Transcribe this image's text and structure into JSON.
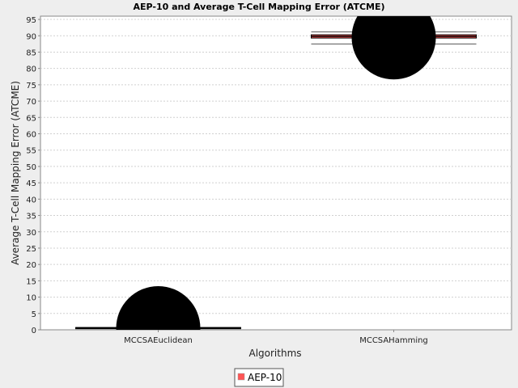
{
  "chart_data": {
    "type": "box",
    "title": "AEP-10 and Average T-Cell Mapping Error (ATCME)",
    "xlabel": "Algorithms",
    "ylabel": "Average T-Cell Mapping Error (ATCME)",
    "ylim": [
      0,
      96
    ],
    "yticks": [
      0,
      5,
      10,
      15,
      20,
      25,
      30,
      35,
      40,
      45,
      50,
      55,
      60,
      65,
      70,
      75,
      80,
      85,
      90,
      95
    ],
    "categories": [
      "MCCSAEuclidean",
      "MCCSAHamming"
    ],
    "series": [
      {
        "name": "AEP-10",
        "color": "#ff5555",
        "boxes": [
          {
            "category": "MCCSAEuclidean",
            "min": 0.5,
            "q1": 0.5,
            "median": 0.5,
            "q3": 0.7,
            "max": 0.7,
            "mean": 0.5
          },
          {
            "category": "MCCSAHamming",
            "min": 87.5,
            "q1": 89.3,
            "median": 89.8,
            "q3": 90.3,
            "max": 91.2,
            "mean": 89.5
          }
        ]
      }
    ],
    "legend": {
      "position": "bottom",
      "entries": [
        "AEP-10"
      ]
    },
    "grid": true,
    "background_color": "#ffffff",
    "gridline_color": "#d0d0d0",
    "mean_marker_color": "#000000"
  }
}
